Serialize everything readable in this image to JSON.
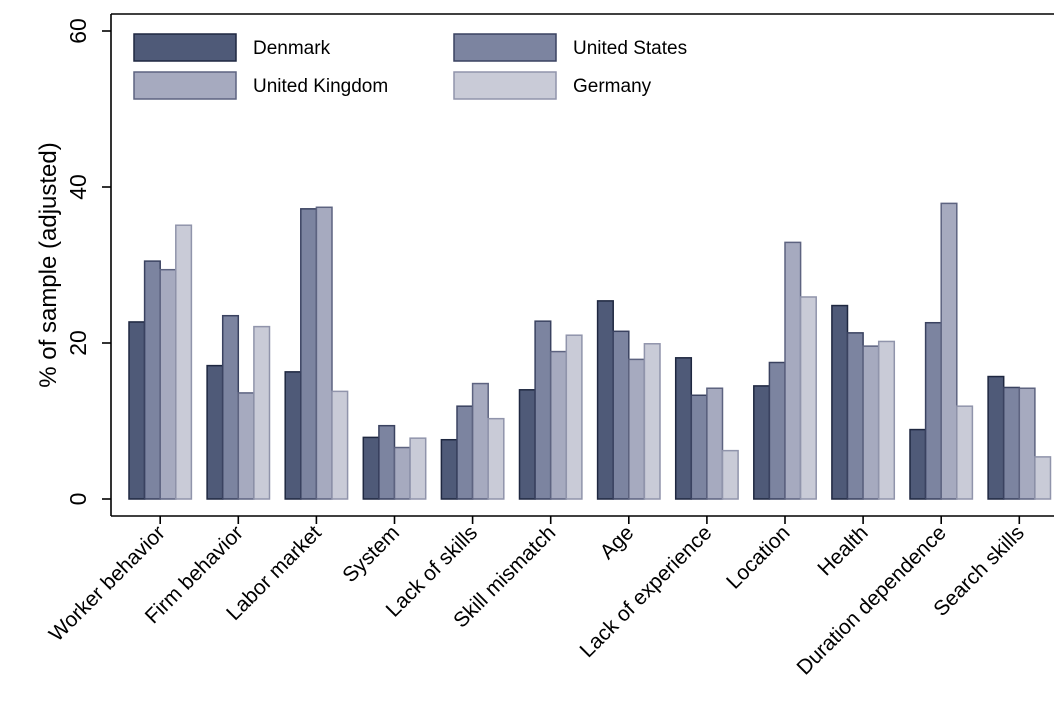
{
  "chart_data": {
    "type": "bar",
    "title": "",
    "xlabel": "",
    "ylabel": "% of sample (adjusted)",
    "ylim": [
      0,
      60
    ],
    "yticks": [
      0,
      20,
      40,
      60
    ],
    "grid": false,
    "legend_position": "top-left",
    "categories": [
      "Worker behavior",
      "Firm behavior",
      "Labor market",
      "System",
      "Lack of skills",
      "Skill mismatch",
      "Age",
      "Lack of experience",
      "Location",
      "Health",
      "Duration dependence",
      "Search skills"
    ],
    "series": [
      {
        "name": "Denmark",
        "color": "#4f5a78",
        "stroke": "#1e2740",
        "values": [
          22.7,
          17.1,
          16.3,
          7.9,
          7.6,
          14.0,
          25.4,
          18.1,
          14.5,
          24.8,
          8.9,
          15.7
        ]
      },
      {
        "name": "United States",
        "color": "#7c84a0",
        "stroke": "#3a4260",
        "values": [
          30.5,
          23.5,
          37.2,
          9.4,
          11.9,
          22.8,
          21.5,
          13.3,
          17.5,
          21.3,
          22.6,
          14.3
        ]
      },
      {
        "name": "United Kingdom",
        "color": "#a6aabf",
        "stroke": "#5d6380",
        "values": [
          29.4,
          13.6,
          37.4,
          6.6,
          14.8,
          18.9,
          17.9,
          14.2,
          32.9,
          19.6,
          37.9,
          14.2
        ]
      },
      {
        "name": "Germany",
        "color": "#c9cbd7",
        "stroke": "#9094ab",
        "values": [
          35.1,
          22.1,
          13.8,
          7.8,
          10.3,
          21.0,
          19.9,
          6.2,
          25.9,
          20.2,
          11.9,
          5.4
        ]
      }
    ]
  }
}
